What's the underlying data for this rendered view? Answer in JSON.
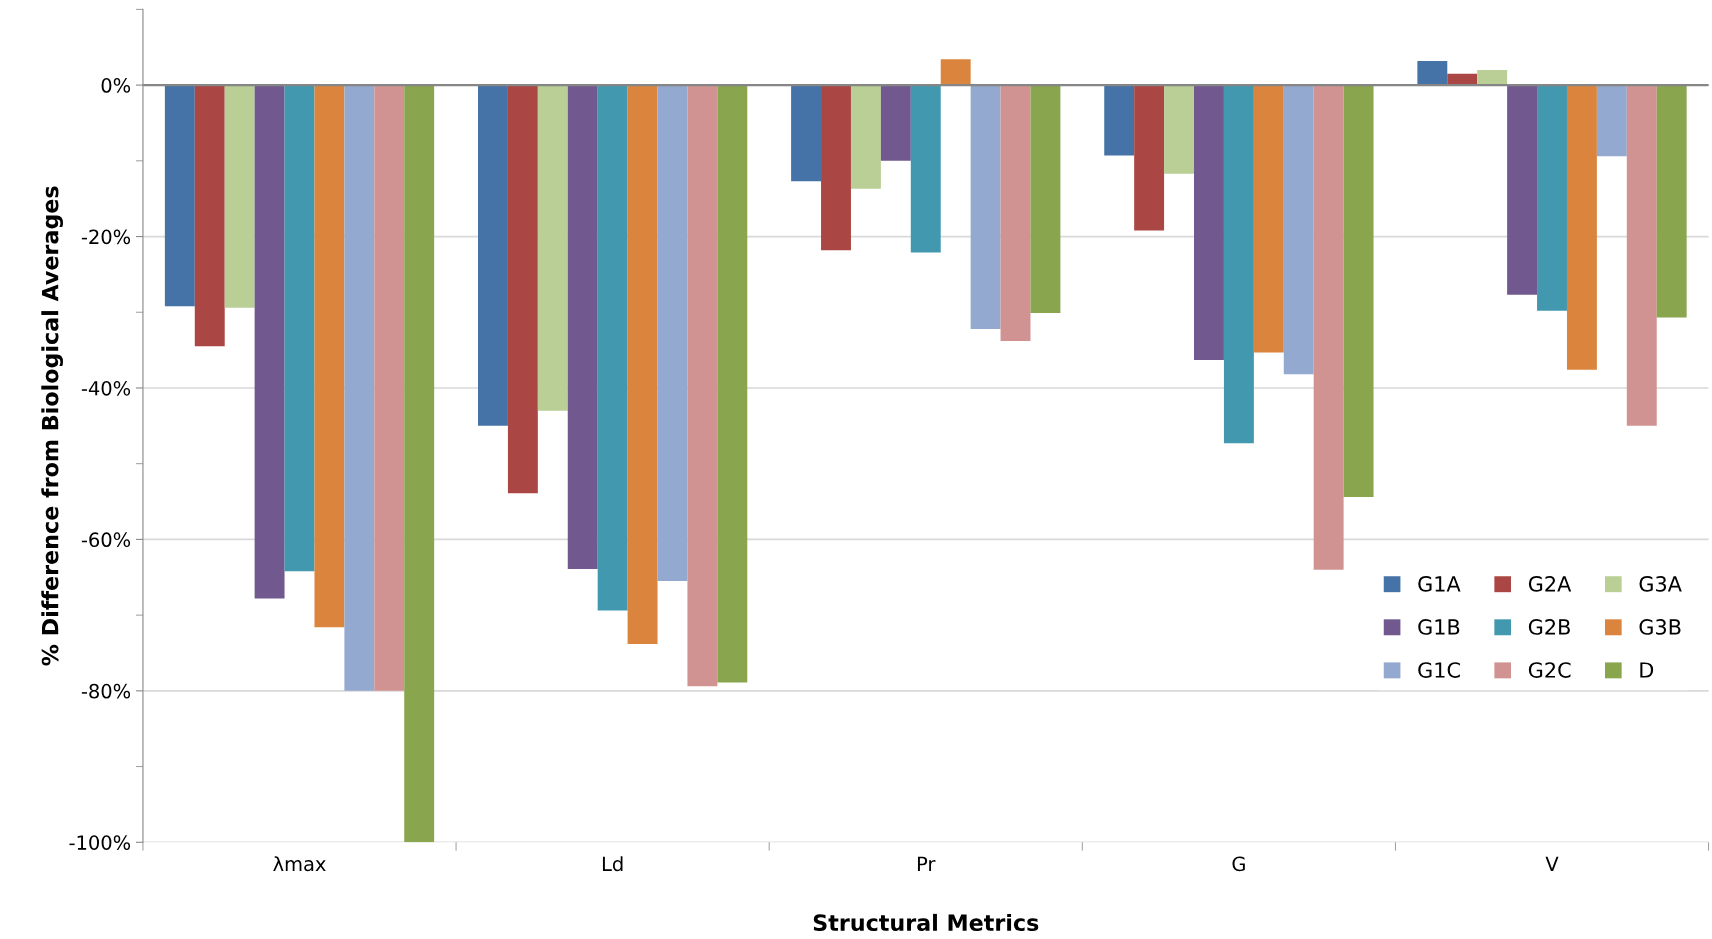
{
  "chart_data": {
    "type": "bar",
    "xlabel": "Structural Metrics",
    "ylabel": "% Difference from Biological Averages",
    "categories": [
      "λmax",
      "Ld",
      "Pr",
      "G",
      "V"
    ],
    "series": [
      {
        "name": "G1A",
        "color": "#4572a7",
        "values": [
          -29.2,
          -45.0,
          -12.7,
          -9.3,
          3.2
        ]
      },
      {
        "name": "G2A",
        "color": "#aa4643",
        "values": [
          -34.5,
          -53.9,
          -21.8,
          -19.2,
          1.5
        ]
      },
      {
        "name": "G3A",
        "color": "#b9cf96",
        "values": [
          -29.4,
          -43.0,
          -13.7,
          -11.7,
          2.0
        ]
      },
      {
        "name": "G1B",
        "color": "#71588f",
        "values": [
          -67.8,
          -63.9,
          -10.0,
          -36.3,
          -27.7
        ]
      },
      {
        "name": "G2B",
        "color": "#4198af",
        "values": [
          -64.2,
          -69.4,
          -22.1,
          -47.3,
          -29.8
        ]
      },
      {
        "name": "G3B",
        "color": "#db843d",
        "values": [
          -71.6,
          -73.8,
          3.4,
          -35.3,
          -37.6
        ]
      },
      {
        "name": "G1C",
        "color": "#93a9cf",
        "values": [
          -80.0,
          -65.5,
          -32.2,
          -38.2,
          -9.4
        ]
      },
      {
        "name": "G2C",
        "color": "#d19392",
        "values": [
          -80.0,
          -79.4,
          -33.8,
          -64.0,
          -45.0
        ]
      },
      {
        "name": "D",
        "color": "#89a54e",
        "values": [
          -100.0,
          -78.9,
          -30.1,
          -54.4,
          -30.7
        ]
      }
    ],
    "ylim": [
      -100,
      10
    ],
    "yticks": [
      {
        "value": -100,
        "label": "-100%"
      },
      {
        "value": -90,
        "label": null
      },
      {
        "value": -80,
        "label": "-80%"
      },
      {
        "value": -70,
        "label": null
      },
      {
        "value": -60,
        "label": "-60%"
      },
      {
        "value": -50,
        "label": null
      },
      {
        "value": -40,
        "label": "-40%"
      },
      {
        "value": -30,
        "label": null
      },
      {
        "value": -20,
        "label": "-20%"
      },
      {
        "value": -10,
        "label": null
      },
      {
        "value": 0,
        "label": "0%"
      },
      {
        "value": 10,
        "label": null
      }
    ],
    "grid": "y",
    "legend": "bottom right"
  }
}
